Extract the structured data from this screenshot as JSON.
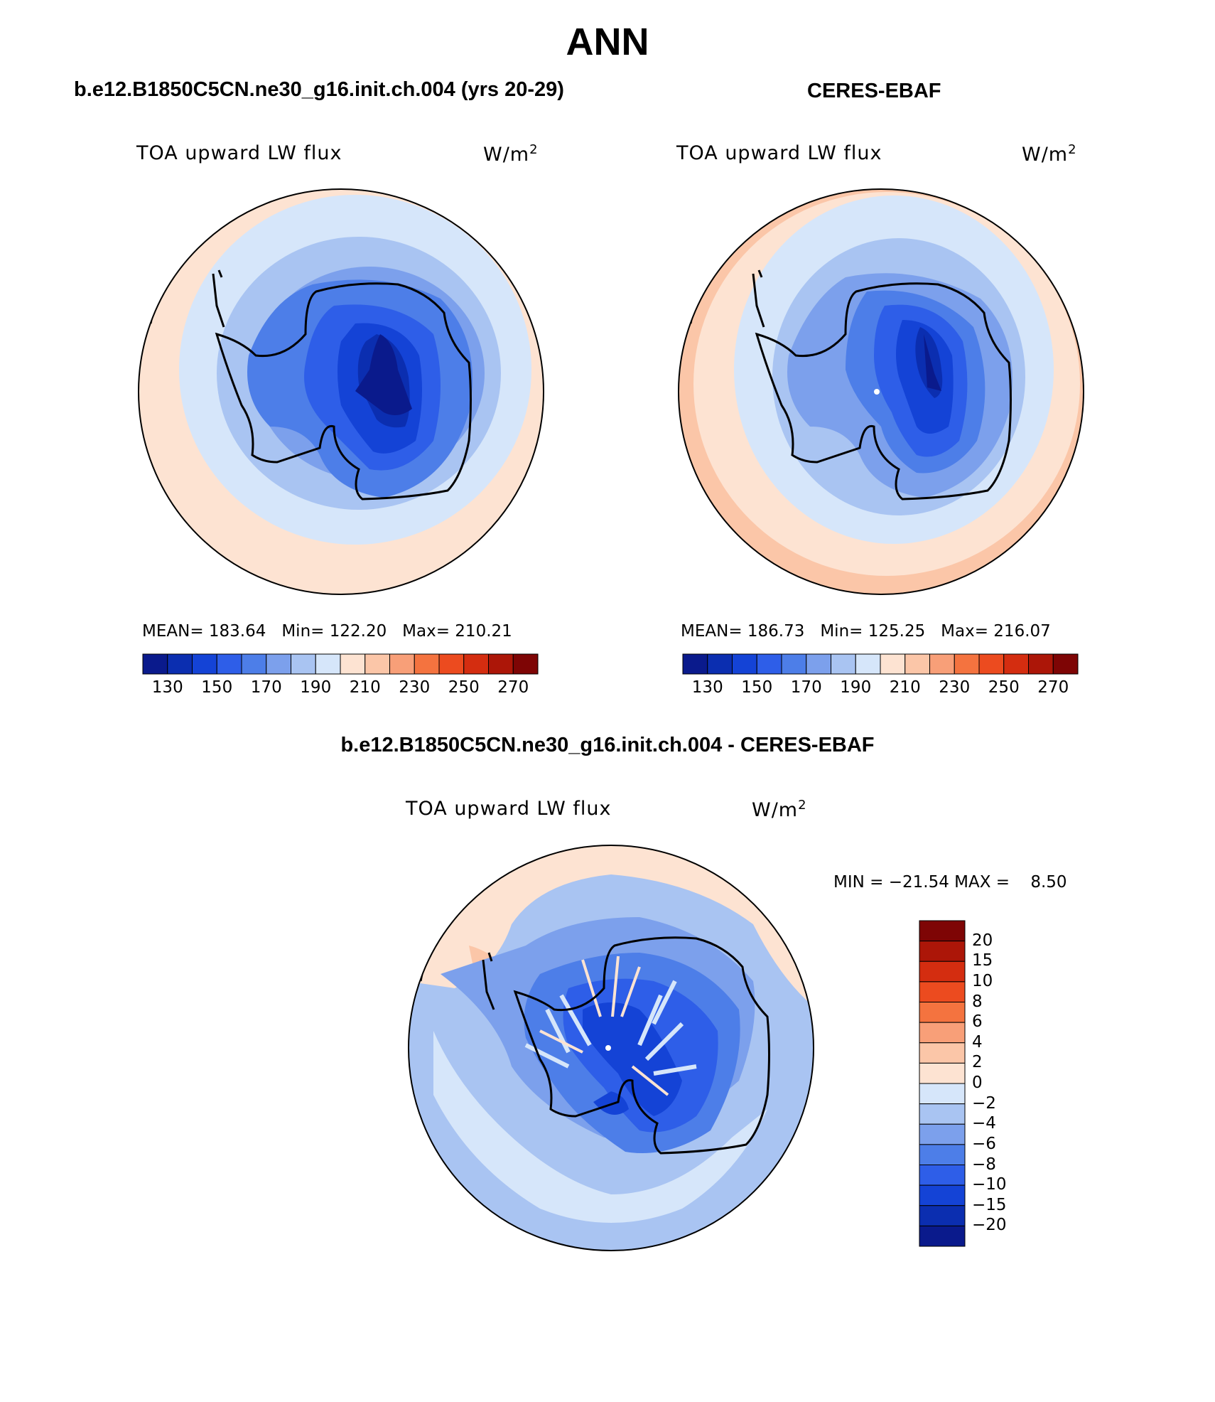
{
  "title": "ANN",
  "panels": [
    {
      "case": "b.e12.B1850C5CN.ne30_g16.init.ch.004 (yrs 20-29)",
      "variable": "TOA upward LW flux",
      "units": "W/m",
      "units_exp": "2",
      "stats": {
        "mean_label": "MEAN=",
        "mean": "183.64",
        "min_label": "Min=",
        "min": "122.20",
        "max_label": "Max=",
        "max": "210.21"
      },
      "colorbar_ticks": [
        "130",
        "150",
        "170",
        "190",
        "210",
        "230",
        "250",
        "270"
      ]
    },
    {
      "case": "CERES-EBAF",
      "variable": "TOA upward LW flux",
      "units": "W/m",
      "units_exp": "2",
      "stats": {
        "mean_label": "MEAN=",
        "mean": "186.73",
        "min_label": "Min=",
        "min": "125.25",
        "max_label": "Max=",
        "max": "216.07"
      },
      "colorbar_ticks": [
        "130",
        "150",
        "170",
        "190",
        "210",
        "230",
        "250",
        "270"
      ]
    }
  ],
  "diff": {
    "title": "b.e12.B1850C5CN.ne30_g16.init.ch.004 - CERES-EBAF",
    "variable": "TOA upward LW flux",
    "units": "W/m",
    "units_exp": "2",
    "minmax": "MIN = −21.54 MAX =    8.50",
    "colorbar_labels": [
      "20",
      "15",
      "10",
      "8",
      "6",
      "4",
      "2",
      "0",
      "−2",
      "−4",
      "−6",
      "−8",
      "−10",
      "−15",
      "−20"
    ]
  },
  "colors": {
    "abs_scale": [
      "#0a1a8c",
      "#0b2eb0",
      "#1443d6",
      "#2e5ee8",
      "#4d7ee8",
      "#7ca0ec",
      "#a9c4f2",
      "#d6e6fa",
      "#fde3d2",
      "#fbc6a8",
      "#f89f78",
      "#f4733f",
      "#ec4b1f",
      "#d42d10",
      "#ac1608",
      "#7e0505"
    ],
    "diff_scale": [
      "#0a1a8c",
      "#0b2eb0",
      "#1443d6",
      "#2e5ee8",
      "#4d7ee8",
      "#7ca0ec",
      "#a9c4f2",
      "#d6e6fa",
      "#fde3d2",
      "#fbc6a8",
      "#f89f78",
      "#f4733f",
      "#ec4b1f",
      "#d42d10",
      "#ac1608",
      "#7e0505"
    ]
  }
}
